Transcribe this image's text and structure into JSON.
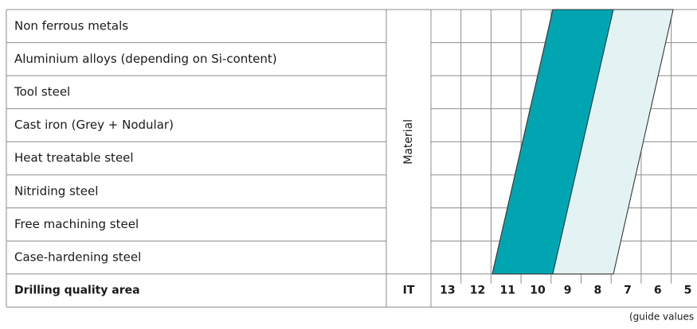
{
  "table": {
    "rows": [
      "Non ferrous metals",
      "Aluminium alloys (depending on Si-content)",
      "Tool steel",
      "Cast iron (Grey + Nodular)",
      "Heat treatable steel",
      "Nitriding steel",
      "Free machining steel",
      "Case-hardening steel"
    ],
    "side_label": "Material",
    "footer": {
      "label": "Drilling quality area",
      "unit": "IT",
      "grades": [
        "13",
        "12",
        "11",
        "10",
        "9",
        "8",
        "7",
        "6",
        "5"
      ]
    },
    "note": "(guide values"
  }
}
